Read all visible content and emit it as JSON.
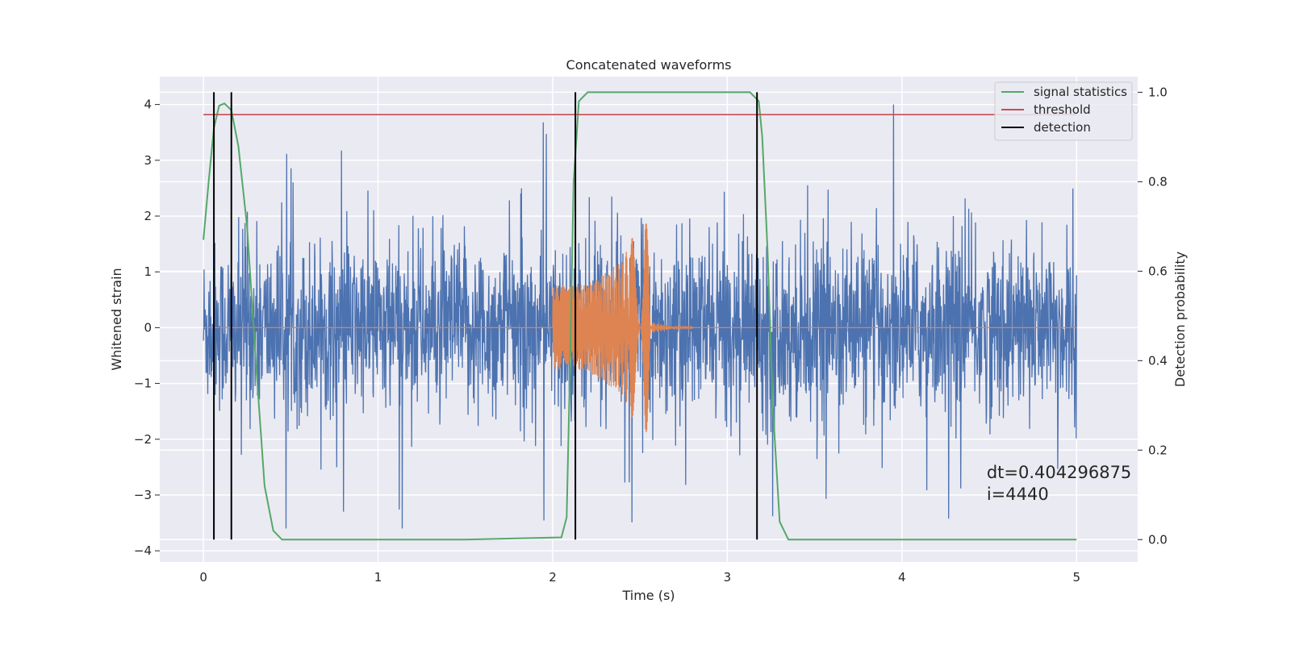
{
  "chart_data": {
    "type": "line",
    "title": "Concatenated waveforms",
    "xlabel": "Time (s)",
    "ylabel": "Whitened strain",
    "y2label": "Detection probability",
    "xlim": [
      -0.25,
      5.35
    ],
    "ylim": [
      -4.2,
      4.5
    ],
    "y2lim": [
      -0.05,
      1.035
    ],
    "xticks": [
      0,
      1,
      2,
      3,
      4,
      5
    ],
    "yticks": [
      -4,
      -3,
      -2,
      -1,
      0,
      1,
      2,
      3,
      4
    ],
    "y2ticks": [
      0.0,
      0.2,
      0.4,
      0.6,
      0.8,
      1.0
    ],
    "xtick_labels": [
      "0",
      "1",
      "2",
      "3",
      "4",
      "5"
    ],
    "ytick_labels": [
      "−4",
      "−3",
      "−2",
      "−1",
      "0",
      "1",
      "2",
      "3",
      "4"
    ],
    "y2tick_labels": [
      "0.0",
      "0.2",
      "0.4",
      "0.6",
      "0.8",
      "1.0"
    ],
    "grid": true,
    "legend_position": "top-right",
    "legend": [
      {
        "label": "signal statistics",
        "color": "#55a868"
      },
      {
        "label": "threshold",
        "color": "#c44e52"
      },
      {
        "label": "detection",
        "color": "#000000"
      }
    ],
    "series": [
      {
        "color": "#4c72b0",
        "x_range": [
          0,
          5
        ],
        "amplitude_range": [
          -3.6,
          4.0
        ]
      },
      {
        "color": "#dd8452",
        "axis": "left",
        "points": [
          [
            0,
            0
          ],
          [
            1.99,
            0
          ],
          [
            2.0,
            0.75
          ],
          [
            2.2,
            0.78
          ],
          [
            2.4,
            1.2
          ],
          [
            2.48,
            1.8
          ],
          [
            2.53,
            2.8
          ],
          [
            2.56,
            0.1
          ],
          [
            2.7,
            0.01
          ],
          [
            5,
            0
          ]
        ]
      },
      {
        "name": "signal statistics",
        "color": "#55a868",
        "axis": "right",
        "points": [
          [
            0,
            0.67
          ],
          [
            0.03,
            0.8
          ],
          [
            0.06,
            0.92
          ],
          [
            0.09,
            0.97
          ],
          [
            0.12,
            0.975
          ],
          [
            0.16,
            0.96
          ],
          [
            0.2,
            0.88
          ],
          [
            0.25,
            0.7
          ],
          [
            0.3,
            0.4
          ],
          [
            0.35,
            0.12
          ],
          [
            0.4,
            0.02
          ],
          [
            0.45,
            0.0
          ],
          [
            1.5,
            0.0
          ],
          [
            2.05,
            0.005
          ],
          [
            2.08,
            0.05
          ],
          [
            2.1,
            0.4
          ],
          [
            2.12,
            0.8
          ],
          [
            2.15,
            0.98
          ],
          [
            2.2,
            1.0
          ],
          [
            3.13,
            1.0
          ],
          [
            3.18,
            0.98
          ],
          [
            3.2,
            0.9
          ],
          [
            3.23,
            0.65
          ],
          [
            3.26,
            0.3
          ],
          [
            3.3,
            0.04
          ],
          [
            3.35,
            0.0
          ],
          [
            5.0,
            0.0
          ]
        ]
      },
      {
        "name": "threshold",
        "color": "#c44e52",
        "axis": "right",
        "points": [
          [
            0,
            0.95
          ],
          [
            5,
            0.95
          ]
        ]
      }
    ],
    "detections": [
      0.06,
      0.16,
      2.13,
      3.17
    ],
    "annotation": {
      "lines": [
        "dt=0.404296875",
        " i=4440"
      ],
      "x": 4.55,
      "y": 0.13
    }
  }
}
